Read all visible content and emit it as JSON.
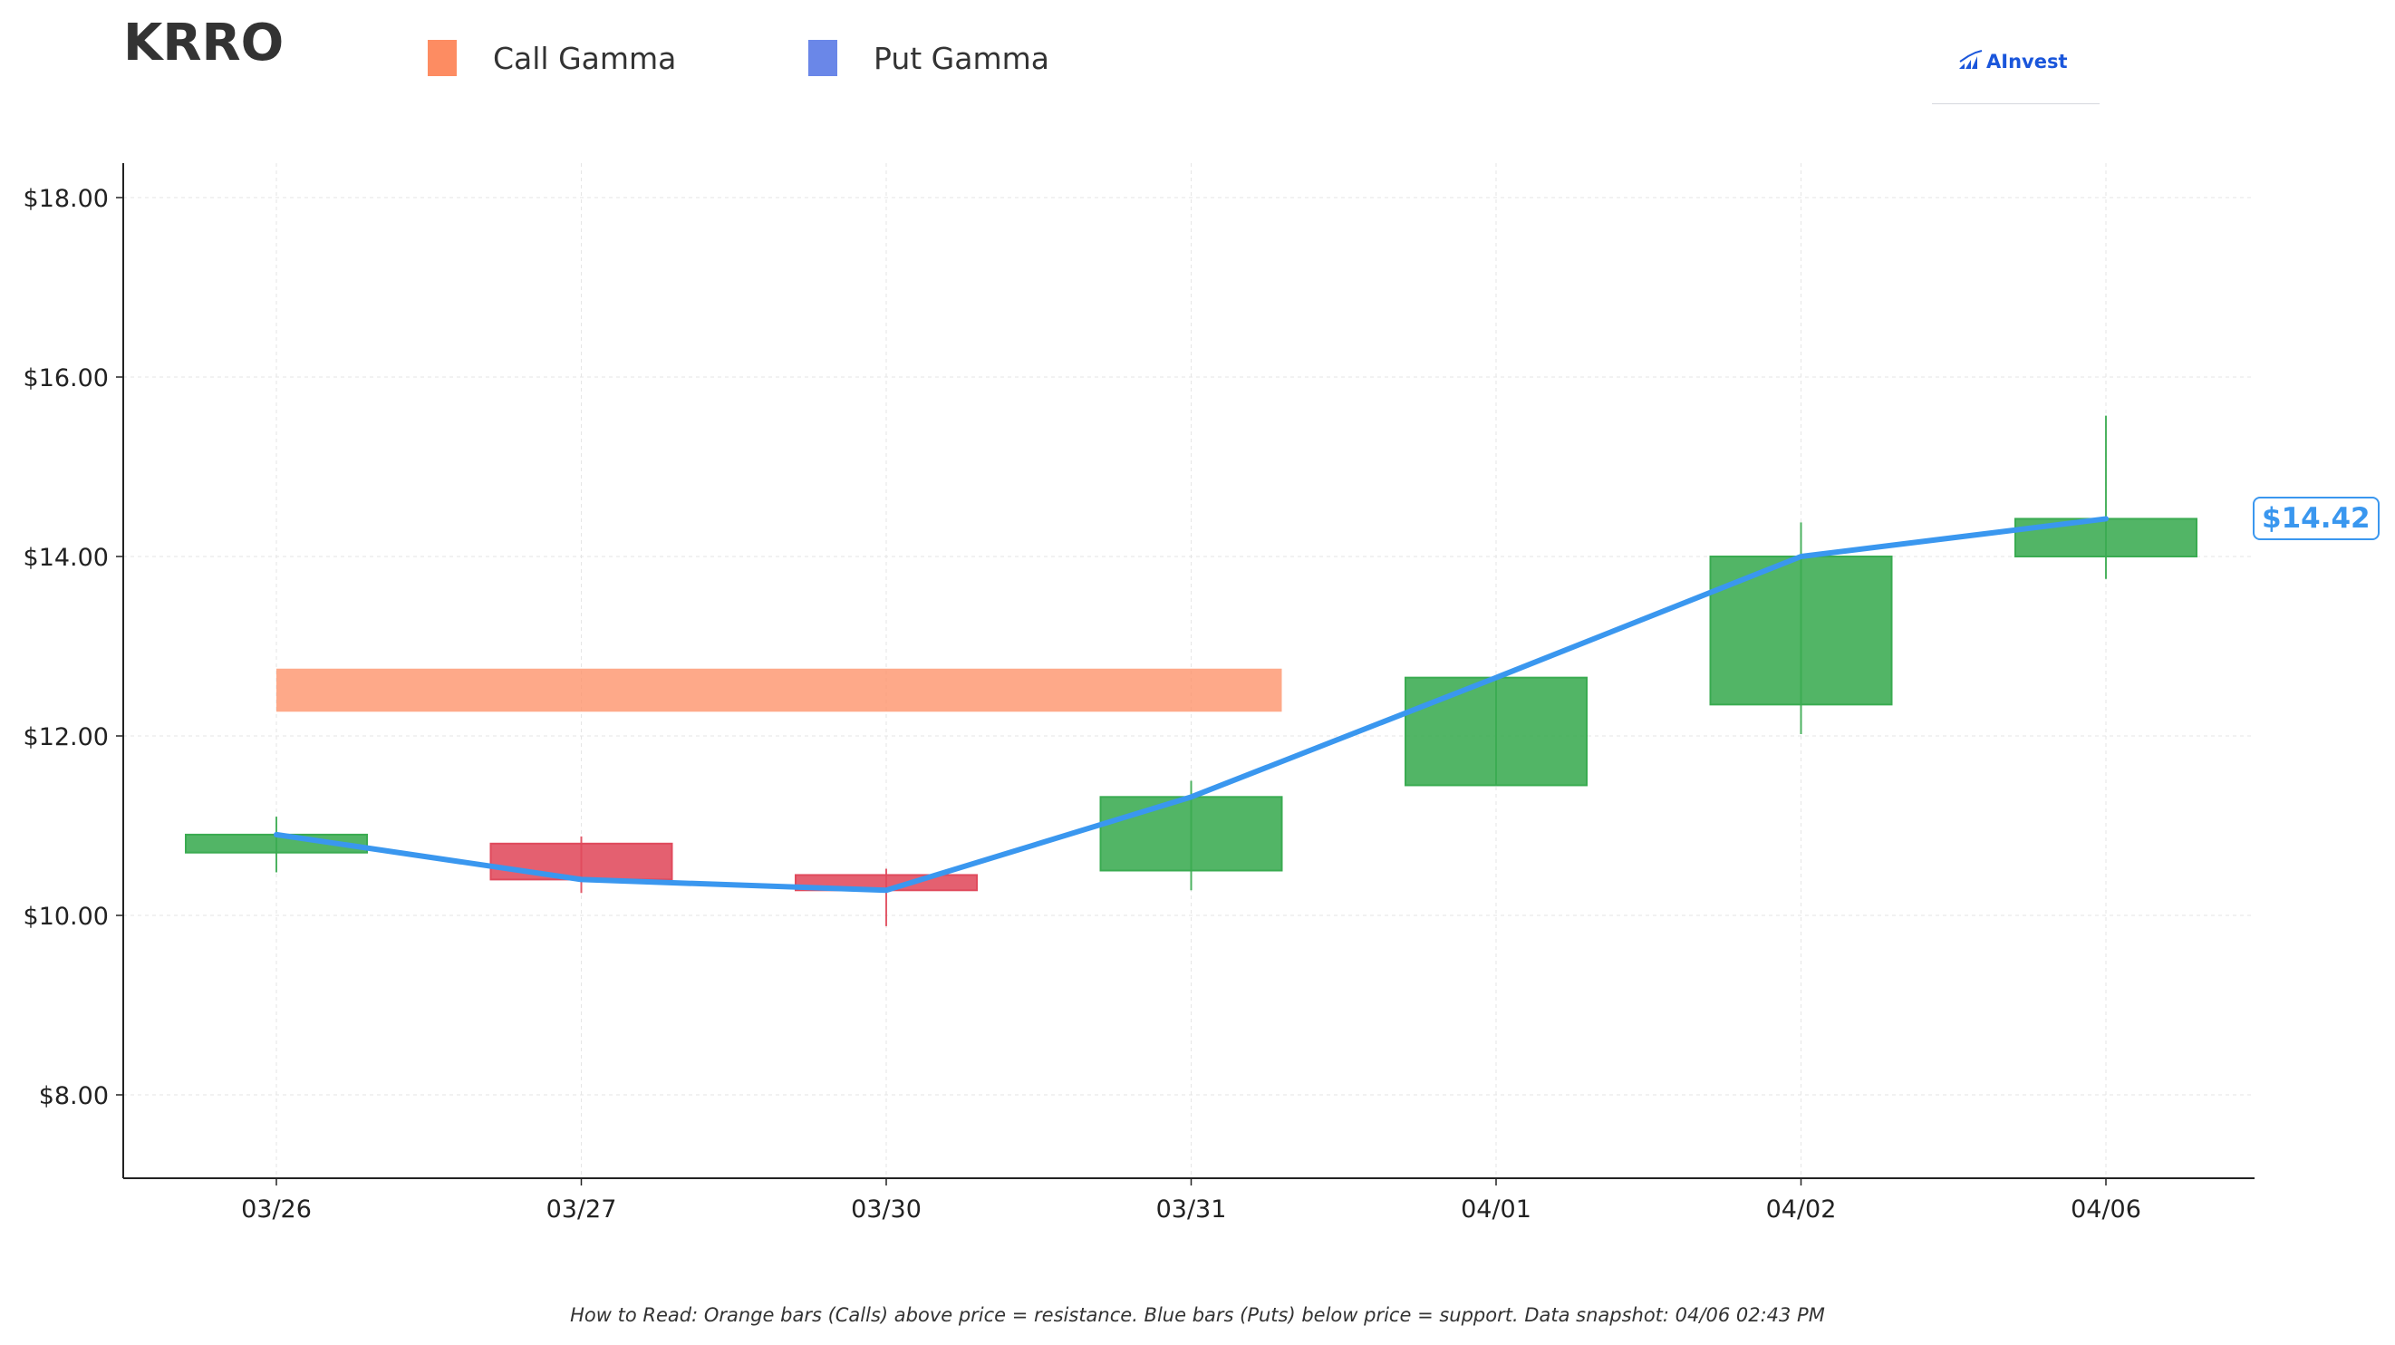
{
  "header": {
    "ticker": "KRRO",
    "legend": [
      {
        "label": "Call Gamma",
        "color": "#fd8c62"
      },
      {
        "label": "Put Gamma",
        "color": "#6a87e8"
      }
    ],
    "logo_text": "AInvest"
  },
  "chart_data": {
    "type": "candlestick",
    "categories": [
      "03/26",
      "03/27",
      "03/30",
      "03/31",
      "04/01",
      "04/02",
      "04/06"
    ],
    "ohlc": [
      {
        "date": "03/26",
        "open": 10.7,
        "high": 11.1,
        "low": 10.48,
        "close": 10.9
      },
      {
        "date": "03/27",
        "open": 10.8,
        "high": 10.88,
        "low": 10.25,
        "close": 10.4
      },
      {
        "date": "03/30",
        "open": 10.45,
        "high": 10.52,
        "low": 9.88,
        "close": 10.28
      },
      {
        "date": "03/31",
        "open": 10.5,
        "high": 11.5,
        "low": 10.28,
        "close": 11.32
      },
      {
        "date": "04/01",
        "open": 11.45,
        "high": 12.65,
        "low": 11.45,
        "close": 12.65
      },
      {
        "date": "04/02",
        "open": 12.35,
        "high": 14.38,
        "low": 12.02,
        "close": 14.0
      },
      {
        "date": "04/06",
        "open": 14.0,
        "high": 15.57,
        "low": 13.75,
        "close": 14.42
      }
    ],
    "price_line": [
      10.9,
      10.4,
      10.28,
      11.32,
      12.65,
      14.0,
      14.42
    ],
    "call_gamma_zones": [
      {
        "from": "03/26",
        "to": "03/31",
        "low": 12.27,
        "high": 12.75
      }
    ],
    "put_gamma_zones": [],
    "y_ticks": [
      "$8.00",
      "$10.00",
      "$12.00",
      "$14.00",
      "$16.00",
      "$18.00"
    ],
    "y_tick_values": [
      8,
      10,
      12,
      14,
      16,
      18
    ],
    "ylim": [
      7.1,
      18.4
    ],
    "current_price_label": "$14.42",
    "grid": true,
    "colors": {
      "up": "#3aab51",
      "down": "#e04a5c",
      "price_line": "#3a97ef",
      "call_zone": "#fd8c62"
    }
  },
  "footnote": "How to Read: Orange bars (Calls) above price = resistance. Blue bars (Puts) below price = support. Data snapshot: 04/06 02:43 PM"
}
